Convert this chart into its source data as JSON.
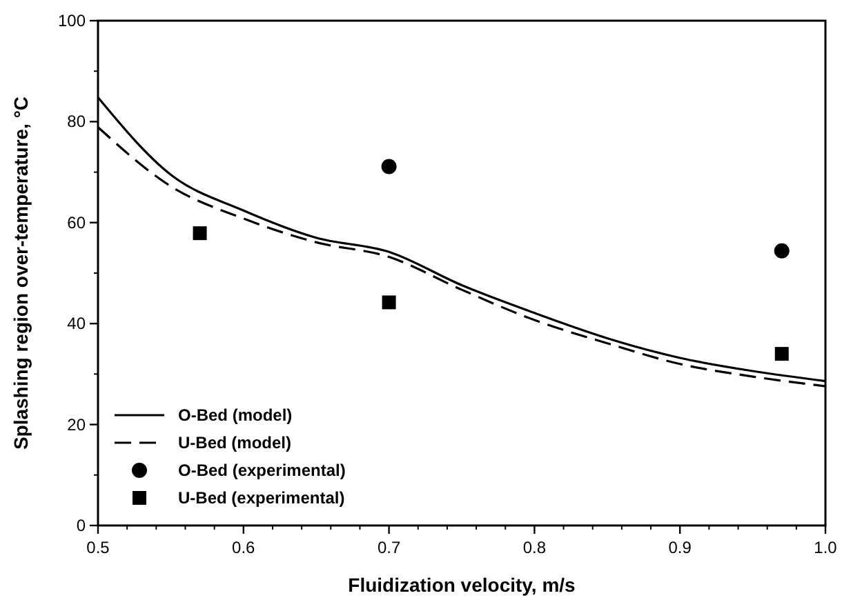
{
  "chart_data": {
    "type": "line",
    "xlabel": "Fluidization velocity, m/s",
    "ylabel": "Splashing region over-temperature, °C",
    "xlim": [
      0.5,
      1.0
    ],
    "xticks": [
      0.5,
      0.6,
      0.7,
      0.8,
      0.9,
      {
        "value": 1.0,
        "label": "1.0"
      }
    ],
    "ylim": [
      0,
      100
    ],
    "yticks": [
      0,
      20,
      40,
      60,
      80,
      100
    ],
    "grid": false,
    "legend": "bottom left",
    "series": [
      {
        "name": "O-Bed (model)",
        "color": "#000000",
        "line_style": "solid",
        "marker": "none",
        "x": [
          0.5,
          0.55,
          0.6,
          0.65,
          0.7,
          0.75,
          0.8,
          0.85,
          0.9,
          0.95,
          1.0
        ],
        "values": [
          84.8,
          69.5,
          62.4,
          57,
          54.2,
          47.6,
          42.1,
          37.1,
          33.2,
          30.6,
          28.6
        ]
      },
      {
        "name": "U-Bed (model)",
        "color": "#000000",
        "line_style": "dashed",
        "marker": "none",
        "x": [
          0.5,
          0.55,
          0.6,
          0.65,
          0.7,
          0.75,
          0.8,
          0.85,
          0.9,
          0.95,
          1.0
        ],
        "values": [
          78.9,
          67.2,
          60.8,
          56.1,
          53.2,
          46.7,
          40.7,
          36.1,
          32,
          29.5,
          27.6
        ]
      },
      {
        "name": "O-Bed (experimental)",
        "color": "#000000",
        "type": "scatter",
        "marker": "circle",
        "x": [
          0.7,
          0.97
        ],
        "values": [
          71.1,
          54.4
        ]
      },
      {
        "name": "U-Bed (experimental)",
        "color": "#000000",
        "type": "scatter",
        "marker": "square",
        "x": [
          0.57,
          0.7,
          0.97
        ],
        "values": [
          57.9,
          44.2,
          34
        ]
      }
    ]
  }
}
